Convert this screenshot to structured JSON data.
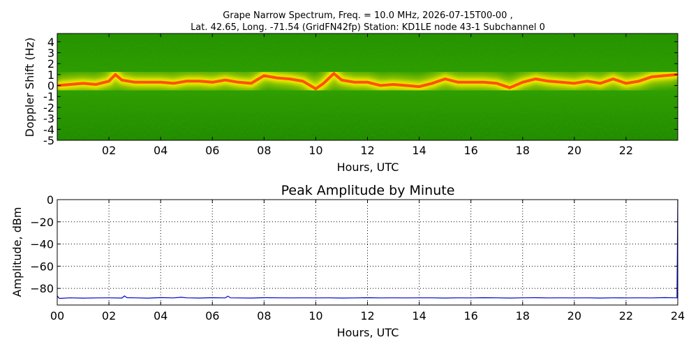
{
  "figure": {
    "title_line1": "Grape Narrow Spectrum, Freq. = 10.0 MHz, 2026-07-15T00-00 ,",
    "title_line2": "Lat.  42.65, Long. -71.54 (GridFN42fp) Station: KD1LE node 43-1 Subchannel 0"
  },
  "chart_data": [
    {
      "type": "heatmap",
      "title": "",
      "xlabel": "Hours, UTC",
      "ylabel": "Doppler Shift (Hz)",
      "xlim": [
        0,
        24
      ],
      "ylim": [
        -5,
        5
      ],
      "x_ticks": [
        "02",
        "04",
        "06",
        "08",
        "10",
        "12",
        "14",
        "16",
        "18",
        "20",
        "22"
      ],
      "x_tick_values": [
        2,
        4,
        6,
        8,
        10,
        12,
        14,
        16,
        18,
        20,
        22
      ],
      "y_ticks": [
        "4",
        "3",
        "2",
        "1",
        "0",
        "-1",
        "-2",
        "-3",
        "-4",
        "-5"
      ],
      "y_tick_values": [
        4,
        3,
        2,
        1,
        0,
        -1,
        -2,
        -3,
        -4,
        -5
      ],
      "colors": {
        "background": "#1a8a00",
        "band_mid": "#d8e000",
        "band_peak": "#ff4a00"
      },
      "peak_doppler_track": {
        "hours": [
          0,
          0.5,
          1,
          1.5,
          2,
          2.25,
          2.5,
          3,
          3.5,
          4,
          4.5,
          5,
          5.5,
          6,
          6.5,
          7,
          7.5,
          8,
          8.5,
          9,
          9.5,
          10,
          10.3,
          10.7,
          11,
          11.5,
          12,
          12.5,
          13,
          13.5,
          14,
          14.5,
          15,
          15.5,
          16,
          16.5,
          17,
          17.5,
          18,
          18.5,
          19,
          19.5,
          20,
          20.5,
          21,
          21.5,
          22,
          22.5,
          23,
          23.5,
          24
        ],
        "hz": [
          0.0,
          0.1,
          0.2,
          0.1,
          0.4,
          1.0,
          0.5,
          0.3,
          0.3,
          0.3,
          0.2,
          0.4,
          0.4,
          0.3,
          0.5,
          0.3,
          0.2,
          0.9,
          0.7,
          0.6,
          0.4,
          -0.3,
          0.2,
          1.1,
          0.5,
          0.3,
          0.3,
          0.0,
          0.1,
          0.0,
          -0.1,
          0.2,
          0.6,
          0.3,
          0.3,
          0.3,
          0.2,
          -0.2,
          0.3,
          0.6,
          0.4,
          0.3,
          0.2,
          0.4,
          0.2,
          0.6,
          0.2,
          0.4,
          0.8,
          0.9,
          1.0
        ]
      }
    },
    {
      "type": "line",
      "title": "Peak Amplitude by Minute",
      "xlabel": "Hours, UTC",
      "ylabel": "Amplitude, dBm",
      "xlim": [
        0,
        24
      ],
      "ylim": [
        -95,
        0
      ],
      "grid": true,
      "x_ticks": [
        "00",
        "02",
        "04",
        "06",
        "08",
        "10",
        "12",
        "14",
        "16",
        "18",
        "20",
        "22",
        "24"
      ],
      "x_tick_values": [
        0,
        2,
        4,
        6,
        8,
        10,
        12,
        14,
        16,
        18,
        20,
        22,
        24
      ],
      "y_ticks": [
        "0",
        "−20",
        "−40",
        "−60",
        "−80"
      ],
      "y_tick_values": [
        0,
        -20,
        -40,
        -60,
        -80
      ],
      "series": [
        {
          "color": "#0000cc",
          "x": [
            0,
            0.05,
            0.1,
            0.5,
            1.0,
            1.5,
            2.0,
            2.5,
            2.6,
            2.7,
            3.0,
            3.5,
            4.0,
            4.5,
            4.8,
            5.0,
            5.5,
            6.0,
            6.5,
            6.6,
            6.7,
            7.0,
            7.5,
            8.0,
            8.5,
            9.0,
            9.5,
            10.0,
            10.5,
            11.0,
            11.5,
            12.0,
            12.5,
            13.0,
            13.5,
            14.0,
            14.5,
            15.0,
            15.5,
            16.0,
            16.5,
            17.0,
            17.5,
            18.0,
            18.5,
            19.0,
            19.5,
            20.0,
            20.5,
            21.0,
            21.5,
            22.0,
            22.5,
            23.0,
            23.5,
            23.9,
            23.97,
            24.0
          ],
          "y": [
            -86.5,
            -88.5,
            -89,
            -88.5,
            -88.8,
            -88.6,
            -88.5,
            -88.7,
            -86.8,
            -88.4,
            -88.5,
            -88.8,
            -88.3,
            -88.6,
            -88.0,
            -88.5,
            -88.7,
            -88.4,
            -88.6,
            -87.0,
            -88.5,
            -88.6,
            -88.7,
            -88.4,
            -88.5,
            -88.6,
            -88.5,
            -88.6,
            -88.5,
            -88.7,
            -88.6,
            -88.4,
            -88.6,
            -88.5,
            -88.6,
            -88.5,
            -88.5,
            -88.7,
            -88.5,
            -88.6,
            -88.4,
            -88.5,
            -88.7,
            -88.5,
            -88.4,
            -88.6,
            -88.5,
            -88.6,
            -88.5,
            -88.7,
            -88.5,
            -88.6,
            -88.5,
            -88.6,
            -88.3,
            -88.5,
            -88.5,
            0
          ]
        }
      ]
    }
  ]
}
